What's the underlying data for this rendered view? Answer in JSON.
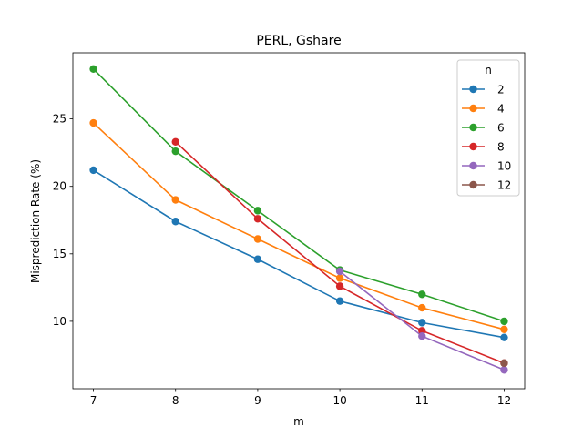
{
  "chart_data": {
    "type": "line",
    "title": "PERL, Gshare",
    "xlabel": "m",
    "ylabel": "Misprediction Rate (%)",
    "xlim": [
      6.75,
      12.25
    ],
    "ylim": [
      5.0,
      29.9
    ],
    "xticks": [
      7,
      8,
      9,
      10,
      11,
      12
    ],
    "yticks": [
      10,
      15,
      20,
      25
    ],
    "legend": {
      "title": "n",
      "placement": "top-right"
    },
    "series": [
      {
        "name": "2",
        "color": "#1f77b4",
        "x": [
          7,
          8,
          9,
          10,
          11,
          12
        ],
        "values": [
          21.2,
          17.4,
          14.6,
          11.5,
          9.9,
          8.8
        ]
      },
      {
        "name": "4",
        "color": "#ff7f0e",
        "x": [
          7,
          8,
          9,
          10,
          11,
          12
        ],
        "values": [
          24.7,
          19.0,
          16.1,
          13.2,
          11.0,
          9.4
        ]
      },
      {
        "name": "6",
        "color": "#2ca02c",
        "x": [
          7,
          8,
          9,
          10,
          11,
          12
        ],
        "values": [
          28.7,
          22.6,
          18.2,
          13.8,
          12.0,
          10.0
        ]
      },
      {
        "name": "8",
        "color": "#d62728",
        "x": [
          8,
          9,
          10,
          11,
          12
        ],
        "values": [
          23.3,
          17.6,
          12.6,
          9.3,
          6.9
        ]
      },
      {
        "name": "10",
        "color": "#9467bd",
        "x": [
          10,
          11,
          12
        ],
        "values": [
          13.7,
          8.9,
          6.4
        ]
      },
      {
        "name": "12",
        "color": "#8c564b",
        "x": [
          12
        ],
        "values": [
          6.9
        ]
      }
    ]
  }
}
